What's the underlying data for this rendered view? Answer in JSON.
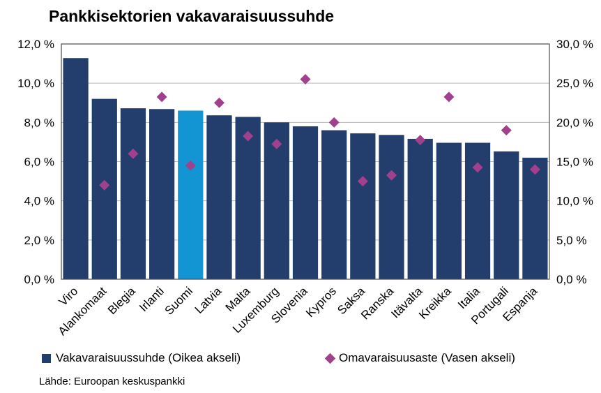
{
  "title": "Pankkisektorien vakavaraisuussuhde",
  "source": "Lähde: Euroopan keskuspankki",
  "legend": {
    "bars_label": "Vakavaraisuussuhde (Oikea akseli)",
    "diamonds_label": "Omavaraisuusaste (Vasen akseli)"
  },
  "colors": {
    "bar": "#233D6D",
    "bar_highlight": "#1395D3",
    "diamond": "#A1418E",
    "grid": "#B7B7B7",
    "border": "#4D4D4D",
    "text": "#000000"
  },
  "chart_data": {
    "type": "bar",
    "title": "Pankkisektorien vakavaraisuussuhde",
    "categories": [
      "Viro",
      "Alankomaat",
      "Blegia",
      "Irlanti",
      "Suomi",
      "Latvia",
      "Malta",
      "Luxemburg",
      "Slovenia",
      "Kypros",
      "Saksa",
      "Ranska",
      "Itävalta",
      "Kreikka",
      "Italia",
      "Portugali",
      "Espanja"
    ],
    "highlight_category": "Suomi",
    "series": [
      {
        "name": "Vakavaraisuussuhde (Oikea akseli)",
        "type": "bar",
        "axis": "right",
        "values": [
          28.2,
          23.0,
          21.8,
          21.7,
          21.5,
          20.9,
          20.7,
          20.0,
          19.5,
          19.0,
          18.6,
          18.4,
          17.9,
          17.4,
          17.4,
          16.3,
          15.5
        ]
      },
      {
        "name": "Omavaraisuusaste (Vasen akseli)",
        "type": "scatter",
        "axis": "left",
        "values": [
          null,
          4.8,
          6.4,
          9.3,
          5.8,
          9.0,
          7.3,
          6.9,
          10.2,
          8.0,
          5.0,
          5.3,
          7.1,
          9.3,
          5.7,
          7.6,
          5.6
        ]
      }
    ],
    "left_axis": {
      "min": 0,
      "max": 12,
      "step": 2,
      "tick_suffix": " %",
      "decimal_separator": ","
    },
    "right_axis": {
      "min": 0,
      "max": 30,
      "step": 5,
      "tick_suffix": " %",
      "decimal_separator": ","
    },
    "grid": true,
    "legend_position": "bottom"
  }
}
